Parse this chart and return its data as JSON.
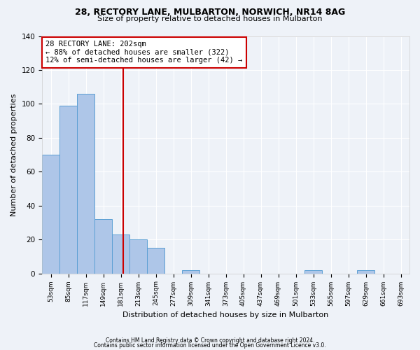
{
  "title1": "28, RECTORY LANE, MULBARTON, NORWICH, NR14 8AG",
  "title2": "Size of property relative to detached houses in Mulbarton",
  "xlabel": "Distribution of detached houses by size in Mulbarton",
  "ylabel": "Number of detached properties",
  "bins": [
    "53sqm",
    "85sqm",
    "117sqm",
    "149sqm",
    "181sqm",
    "213sqm",
    "245sqm",
    "277sqm",
    "309sqm",
    "341sqm",
    "373sqm",
    "405sqm",
    "437sqm",
    "469sqm",
    "501sqm",
    "533sqm",
    "565sqm",
    "597sqm",
    "629sqm",
    "661sqm",
    "693sqm"
  ],
  "values": [
    70,
    99,
    106,
    32,
    23,
    20,
    15,
    0,
    2,
    0,
    0,
    0,
    0,
    0,
    0,
    2,
    0,
    0,
    2,
    0,
    0
  ],
  "bar_color": "#aec6e8",
  "bar_edge_color": "#5a9fd4",
  "red_line_color": "#cc0000",
  "annotation_line1": "28 RECTORY LANE: 202sqm",
  "annotation_line2": "← 88% of detached houses are smaller (322)",
  "annotation_line3": "12% of semi-detached houses are larger (42) →",
  "annotation_box_color": "#ffffff",
  "annotation_box_edge": "#cc0000",
  "footer1": "Contains HM Land Registry data © Crown copyright and database right 2024.",
  "footer2": "Contains public sector information licensed under the Open Government Licence v3.0.",
  "bg_color": "#eef2f8",
  "ylim": [
    0,
    140
  ],
  "grid_color": "#ffffff",
  "title_fontsize": 9,
  "subtitle_fontsize": 8,
  "ylabel_fontsize": 8,
  "xlabel_fontsize": 8,
  "tick_fontsize": 6.5,
  "ann_fontsize": 7.5
}
